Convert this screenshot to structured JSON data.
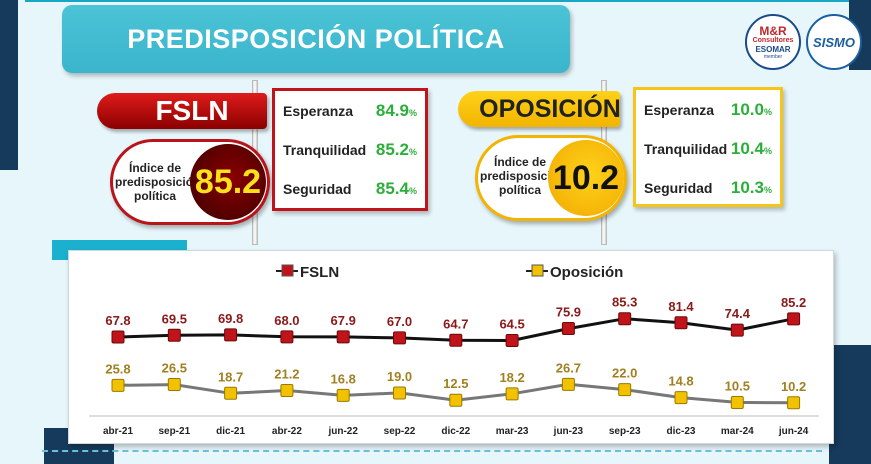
{
  "title": "PREDISPOSICIÓN POLÍTICA",
  "logos": {
    "mr_line1": "M&R",
    "mr_line2": "Consultores",
    "mr_line3": "ESOMAR",
    "mr_line4": "member",
    "sismo": "SISMO"
  },
  "fsln_panel": {
    "name": "FSLN",
    "index_label": "Índice de predisposición política",
    "index_value": "85.2",
    "stats": [
      {
        "label": "Esperanza",
        "value": "84.9",
        "unit": "%"
      },
      {
        "label": "Tranquilidad",
        "value": "85.2",
        "unit": "%"
      },
      {
        "label": "Seguridad",
        "value": "85.4",
        "unit": "%"
      }
    ],
    "color": "#b8141a"
  },
  "oposicion_panel": {
    "name": "OPOSICIÓN",
    "index_label": "Índice de predisposición política",
    "index_value": "10.2",
    "stats": [
      {
        "label": "Esperanza",
        "value": "10.0",
        "unit": "%"
      },
      {
        "label": "Tranquilidad",
        "value": "10.4",
        "unit": "%"
      },
      {
        "label": "Seguridad",
        "value": "10.3",
        "unit": "%"
      }
    ],
    "color": "#f2b400"
  },
  "chart_data": {
    "type": "line",
    "categories": [
      "abr-21",
      "sep-21",
      "dic-21",
      "abr-22",
      "jun-22",
      "sep-22",
      "dic-22",
      "mar-23",
      "jun-23",
      "sep-23",
      "dic-23",
      "mar-24",
      "jun-24"
    ],
    "series": [
      {
        "name": "FSLN",
        "color": "#c0141a",
        "labelColor": "#8a1a1a",
        "values": [
          67.8,
          69.5,
          69.8,
          68.0,
          67.9,
          67.0,
          64.7,
          64.5,
          75.9,
          85.3,
          81.4,
          74.4,
          85.2
        ]
      },
      {
        "name": "Oposición",
        "color": "#f2c200",
        "labelColor": "#a08020",
        "values": [
          25.8,
          26.5,
          18.7,
          21.2,
          16.8,
          19.0,
          12.5,
          18.2,
          26.7,
          22.0,
          14.8,
          10.5,
          10.2
        ]
      }
    ],
    "legend_position": "top",
    "grid": false
  }
}
